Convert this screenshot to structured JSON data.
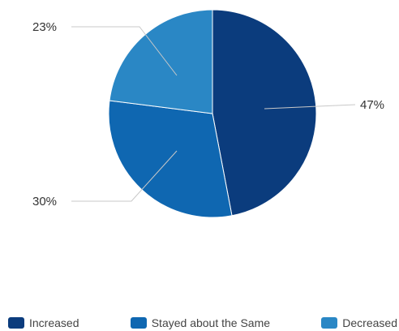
{
  "chart_data": {
    "type": "pie",
    "categories": [
      "Increased",
      "Stayed about the Same",
      "Decreased"
    ],
    "values": [
      47,
      30,
      23
    ],
    "labels": [
      "47%",
      "30%",
      "23%"
    ],
    "colors": [
      "#0b3c7d",
      "#0f67b1",
      "#2a87c5"
    ],
    "legend_position": "bottom"
  }
}
